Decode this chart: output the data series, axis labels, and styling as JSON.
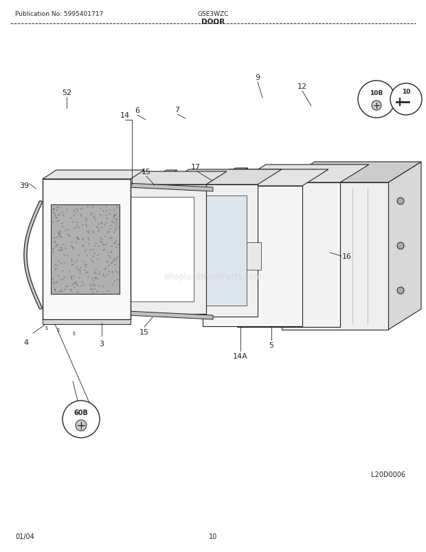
{
  "title": "DOOR",
  "pub_no": "Publication No: 5995401717",
  "model": "GSE3WZC",
  "date": "01/04",
  "page": "10",
  "diagram_id": "L20D0006",
  "bg_color": "#ffffff",
  "line_color": "#222222",
  "light_gray": "#aaaaaa",
  "mid_gray": "#888888",
  "dark_gray": "#444444",
  "fill_gray": "#cccccc"
}
